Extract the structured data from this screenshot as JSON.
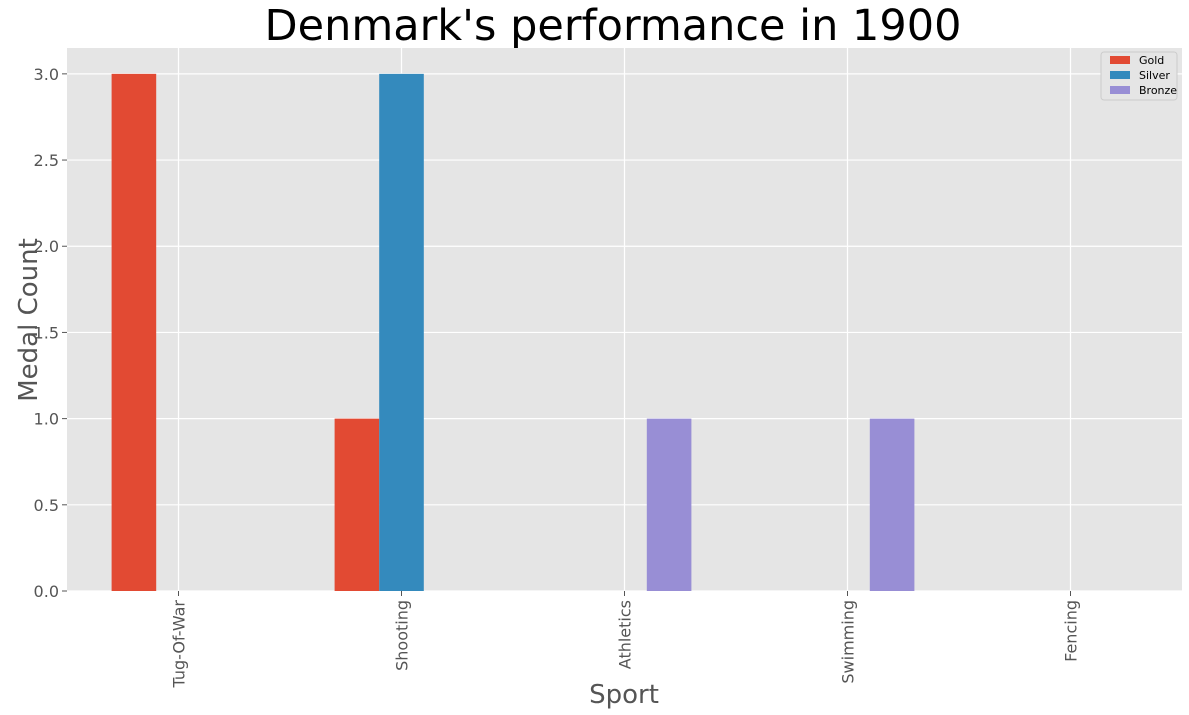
{
  "chart_data": {
    "type": "bar",
    "title": "Denmark's performance in 1900",
    "xlabel": "Sport",
    "ylabel": "Medal Count",
    "categories": [
      "Tug-Of-War",
      "Shooting",
      "Athletics",
      "Swimming",
      "Fencing"
    ],
    "series": [
      {
        "name": "Gold",
        "values": [
          3,
          1,
          0,
          0,
          0
        ],
        "color": "#E24A33"
      },
      {
        "name": "Silver",
        "values": [
          0,
          3,
          0,
          0,
          0
        ],
        "color": "#348ABD"
      },
      {
        "name": "Bronze",
        "values": [
          0,
          0,
          1,
          1,
          0
        ],
        "color": "#988ED5"
      }
    ],
    "ylim": [
      0,
      3.15
    ],
    "yticks": [
      0.0,
      0.5,
      1.0,
      1.5,
      2.0,
      2.5,
      3.0
    ],
    "ytick_labels": [
      "0.0",
      "0.5",
      "1.0",
      "1.5",
      "2.0",
      "2.5",
      "3.0"
    ],
    "grid": true,
    "legend_position": "top-right",
    "background_color": "#E5E5E5",
    "grid_color": "#FFFFFF"
  }
}
